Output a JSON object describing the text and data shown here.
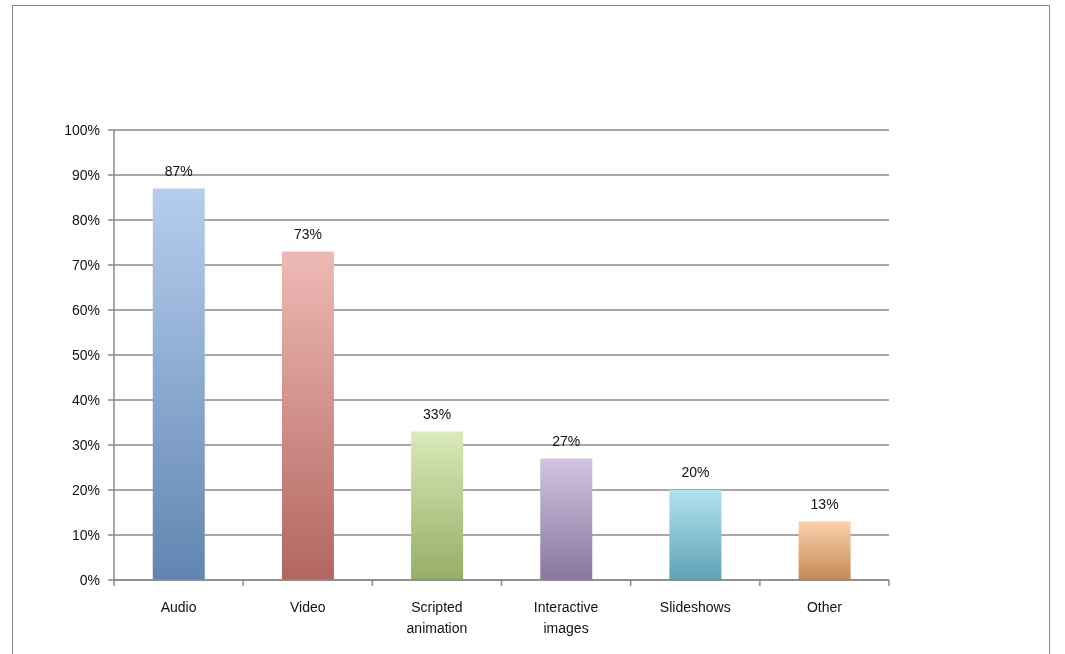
{
  "chart_data": {
    "type": "bar",
    "categories": [
      "Audio",
      "Video",
      "Scripted animation",
      "Interactive images",
      "Slideshows",
      "Other"
    ],
    "values": [
      87,
      73,
      33,
      27,
      20,
      13
    ],
    "colors": [
      "#79a6de",
      "#e08078",
      "#bcd87f",
      "#ab94c7",
      "#74cbe3",
      "#f8ab69"
    ],
    "value_labels": [
      "87%",
      "73%",
      "33%",
      "27%",
      "20%",
      "13%"
    ],
    "ylim": [
      0,
      100
    ],
    "yticks": [
      {
        "value": 0,
        "label": "0%"
      },
      {
        "value": 10,
        "label": "10%"
      },
      {
        "value": 20,
        "label": "20%"
      },
      {
        "value": 30,
        "label": "30%"
      },
      {
        "value": 40,
        "label": "40%"
      },
      {
        "value": 50,
        "label": "50%"
      },
      {
        "value": 60,
        "label": "60%"
      },
      {
        "value": 70,
        "label": "70%"
      },
      {
        "value": 80,
        "label": "80%"
      },
      {
        "value": 90,
        "label": "90%"
      },
      {
        "value": 100,
        "label": "100%"
      }
    ],
    "grid": "y"
  }
}
